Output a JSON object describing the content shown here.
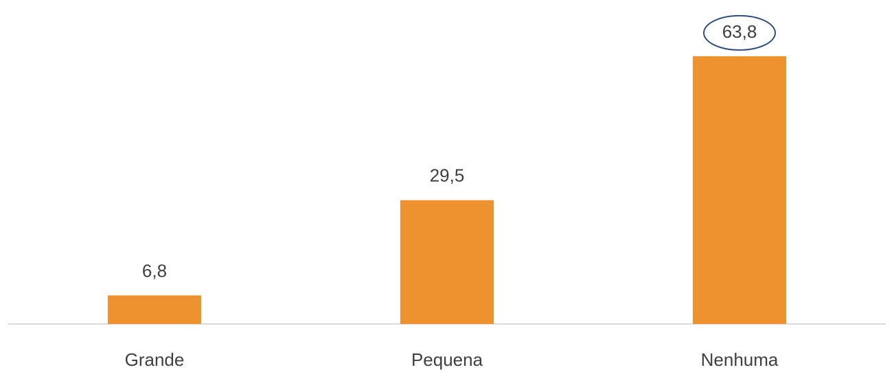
{
  "chart_data": {
    "type": "bar",
    "categories": [
      "Grande",
      "Pequena",
      "Nenhuma"
    ],
    "values": [
      6.8,
      29.5,
      63.8
    ],
    "value_labels": [
      "6,8",
      "29,5",
      "63,8"
    ],
    "color": "#ed922e",
    "ylim": [
      0,
      70
    ]
  }
}
